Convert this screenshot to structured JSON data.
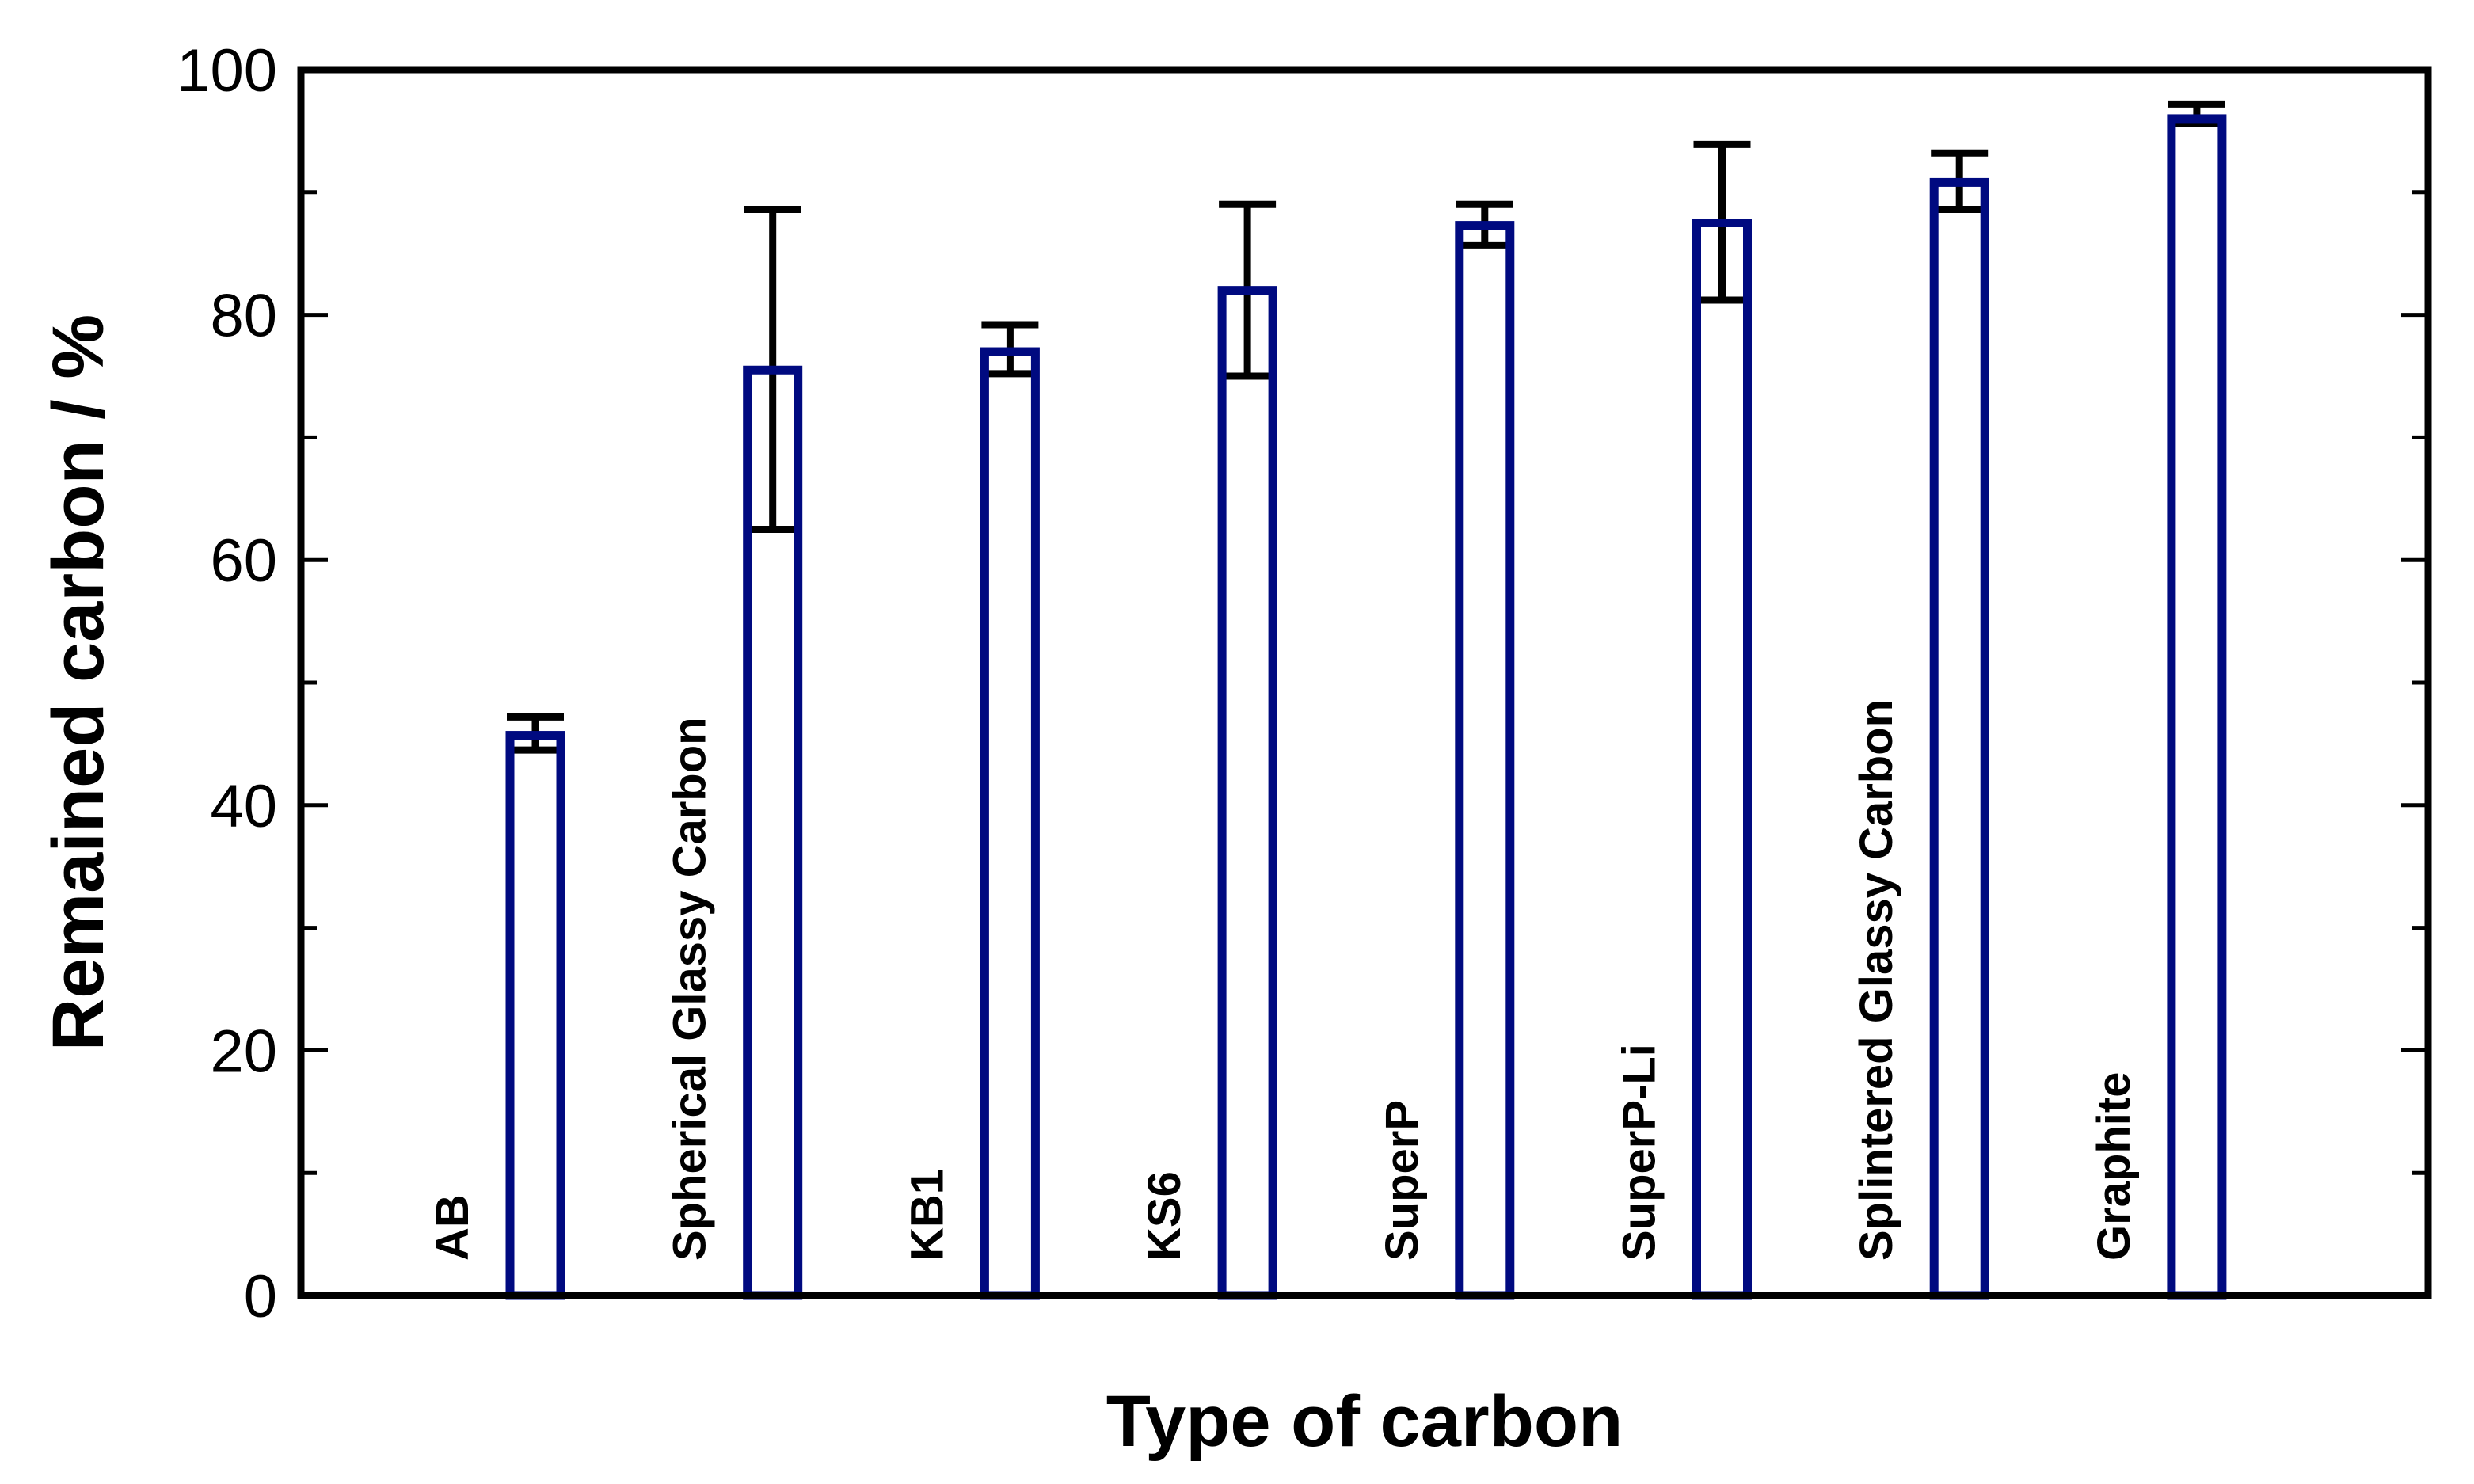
{
  "chart_data": {
    "type": "bar",
    "title": "",
    "xlabel": "Type of carbon",
    "ylabel": "Remained carbon / %",
    "ylim": [
      0,
      100
    ],
    "yticks": [
      0,
      20,
      40,
      60,
      80,
      100
    ],
    "grid": false,
    "legend": "none",
    "categories": [
      "AB",
      "Spherical Glassy Carbon",
      "KB1",
      "KS6",
      "SuperP",
      "SuperP-Li",
      "Splintered Glassy Carbon",
      "Graphite"
    ],
    "series": [
      {
        "values": [
          45.7,
          75.5,
          77.0,
          82.0,
          87.3,
          87.5,
          90.8,
          96.0
        ],
        "error_upper": [
          47.2,
          88.6,
          79.2,
          89.0,
          89.0,
          93.9,
          93.2,
          97.2
        ],
        "error_lower": [
          44.5,
          62.5,
          75.2,
          75.0,
          85.7,
          81.2,
          88.6,
          95.6
        ]
      }
    ],
    "colors": {
      "bar_outline": "#000a80",
      "error_bar": "#000000",
      "frame": "#000000"
    }
  }
}
